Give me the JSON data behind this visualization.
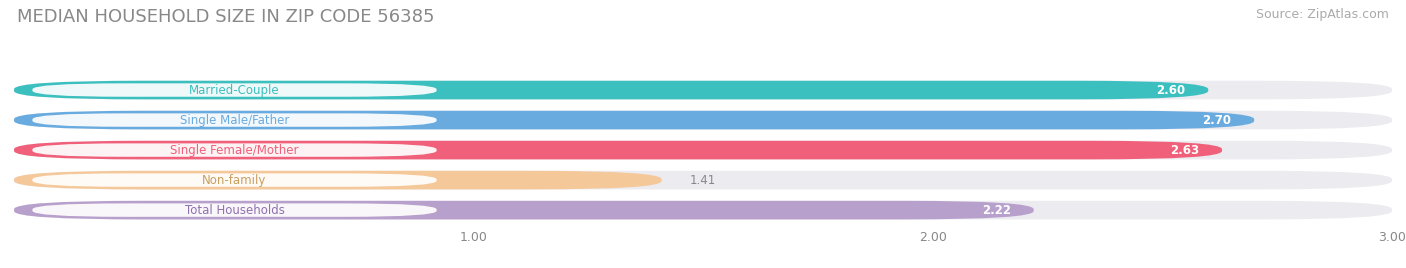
{
  "title": "MEDIAN HOUSEHOLD SIZE IN ZIP CODE 56385",
  "source": "Source: ZipAtlas.com",
  "categories": [
    "Married-Couple",
    "Single Male/Father",
    "Single Female/Mother",
    "Non-family",
    "Total Households"
  ],
  "values": [
    2.6,
    2.7,
    2.63,
    1.41,
    2.22
  ],
  "bar_colors": [
    "#3cbfbf",
    "#6aabdf",
    "#f0607a",
    "#f5c89a",
    "#b8a0cc"
  ],
  "label_text_colors": [
    "#3cbfbf",
    "#6aabdf",
    "#f0607a",
    "#c8a060",
    "#9070b0"
  ],
  "value_label_colors": [
    "white",
    "white",
    "white",
    "#888888",
    "white"
  ],
  "xlim": [
    0,
    3.0
  ],
  "xmin": 0,
  "xticks": [
    1.0,
    2.0,
    3.0
  ],
  "title_fontsize": 13,
  "source_fontsize": 9,
  "bar_height": 0.62,
  "background_color": "#ffffff",
  "bar_bg_color": "#ebebf0",
  "grid_color": "#ffffff"
}
